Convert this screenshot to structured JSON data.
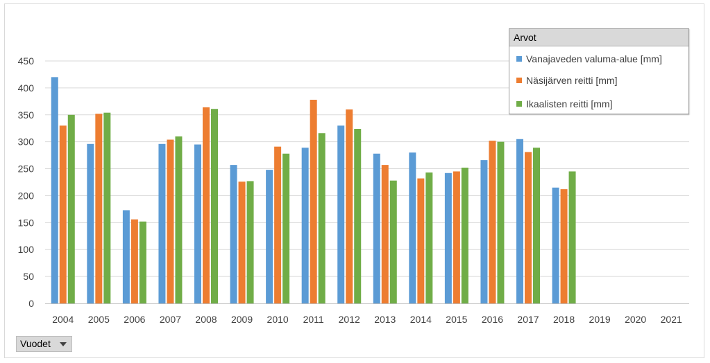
{
  "chart_data": {
    "type": "bar",
    "categories": [
      "2004",
      "2005",
      "2006",
      "2007",
      "2008",
      "2009",
      "2010",
      "2011",
      "2012",
      "2013",
      "2014",
      "2015",
      "2016",
      "2017",
      "2018",
      "2019",
      "2020",
      "2021"
    ],
    "series": [
      {
        "name": "Vanajaveden valuma-alue [mm]",
        "color": "#5b9bd5",
        "values": [
          420,
          296,
          173,
          296,
          295,
          257,
          248,
          289,
          330,
          278,
          280,
          242,
          266,
          305,
          215,
          null,
          null,
          null
        ]
      },
      {
        "name": "Näsijärven reitti [mm]",
        "color": "#ed7d31",
        "values": [
          330,
          352,
          156,
          304,
          364,
          226,
          291,
          378,
          360,
          257,
          232,
          245,
          302,
          281,
          212,
          null,
          null,
          null
        ]
      },
      {
        "name": "Ikaalisten reitti [mm]",
        "color": "#70ad47",
        "values": [
          350,
          354,
          152,
          310,
          361,
          227,
          278,
          316,
          324,
          228,
          243,
          252,
          300,
          289,
          245,
          null,
          null,
          null
        ]
      }
    ],
    "ylim": [
      0,
      450
    ],
    "yticks": [
      0,
      50,
      100,
      150,
      200,
      250,
      300,
      350,
      400,
      450
    ],
    "grid": true,
    "legend_title": "Arvot",
    "legend_position": "top-right"
  },
  "filter": {
    "label": "Vuodet"
  }
}
